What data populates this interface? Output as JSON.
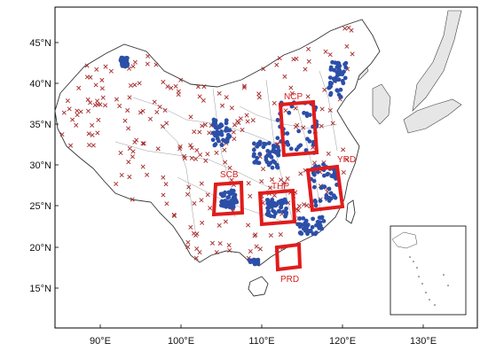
{
  "map": {
    "lat_labels": [
      "45°N",
      "40°N",
      "35°N",
      "30°N",
      "25°N",
      "20°N",
      "15°N"
    ],
    "lon_labels": [
      "90°E",
      "100°E",
      "110°E",
      "120°E",
      "130°E"
    ],
    "regions": [
      {
        "id": "ncp",
        "label": "NCP"
      },
      {
        "id": "yrd",
        "label": "YRD"
      },
      {
        "id": "scb",
        "label": "SCB"
      },
      {
        "id": "thp",
        "label": "THP"
      },
      {
        "id": "prd",
        "label": "PRD"
      }
    ],
    "colors": {
      "land_other": "#e6e6e6",
      "land_china": "#ffffff",
      "border": "#555555",
      "province": "#999999",
      "site_marker": "#a52a2a",
      "station_dot": "#2c4fa8",
      "region_box": "#e01c1c"
    },
    "legend_keys": {
      "site_marker": "x-cross",
      "station_dot": "filled-circle"
    }
  }
}
